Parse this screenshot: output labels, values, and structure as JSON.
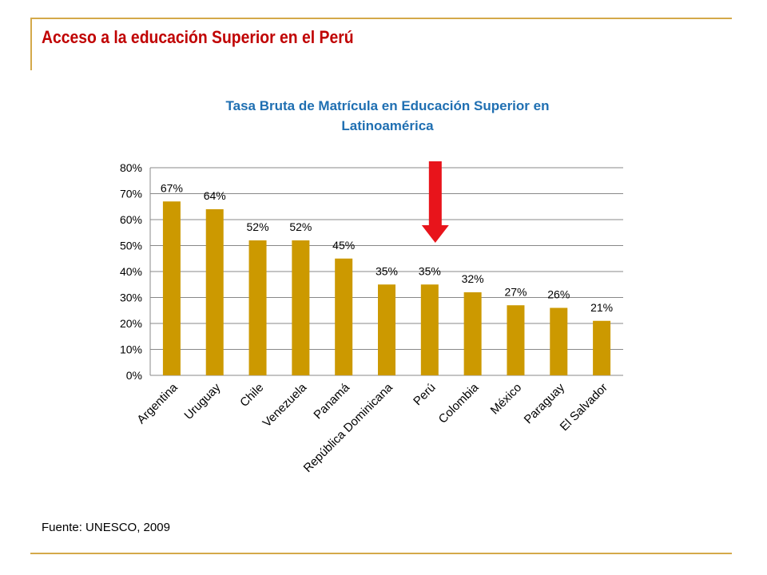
{
  "slide": {
    "title": "Acceso a la educación Superior en el Perú",
    "source": "Fuente: UNESCO, 2009"
  },
  "colors": {
    "bar": "#cc9900",
    "title": "#c00000",
    "chart_title": "#1f6fb2",
    "arrow": "#e8141b",
    "rule": "#d4a94a"
  },
  "chart_data": {
    "type": "bar",
    "title_lines": [
      "Tasa Bruta de Matrícula en Educación Superior en",
      "Latinoamérica"
    ],
    "categories": [
      "Argentina",
      "Uruguay",
      "Chile",
      "Venezuela",
      "Panamá",
      "República Dominicana",
      "Perú",
      "Colombia",
      "México",
      "Paraguay",
      "El Salvador"
    ],
    "values": [
      67,
      64,
      52,
      52,
      45,
      35,
      35,
      32,
      27,
      26,
      21
    ],
    "data_labels": [
      "67%",
      "64%",
      "52%",
      "52%",
      "45%",
      "35%",
      "35%",
      "32%",
      "27%",
      "26%",
      "21%"
    ],
    "ylim": [
      0,
      80
    ],
    "yticks": [
      0,
      10,
      20,
      30,
      40,
      50,
      60,
      70,
      80
    ],
    "ytick_labels": [
      "0%",
      "10%",
      "20%",
      "30%",
      "40%",
      "50%",
      "60%",
      "70%",
      "80%"
    ],
    "grid": true,
    "legend": "none",
    "highlight_category": "Perú",
    "annotation": "red-arrow-down"
  }
}
